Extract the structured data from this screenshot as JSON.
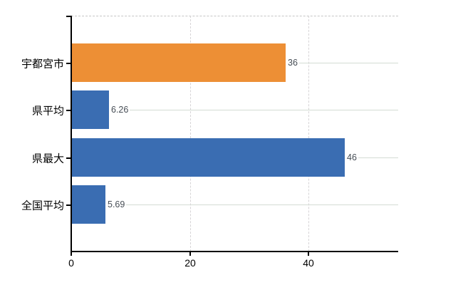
{
  "chart_data": {
    "type": "bar",
    "orientation": "horizontal",
    "title": "",
    "xlabel": "",
    "ylabel": "",
    "categories": [
      "宇都宮市",
      "県平均",
      "県最大",
      "全国平均"
    ],
    "values": [
      36,
      6.26,
      46,
      5.69
    ],
    "value_labels": [
      "36",
      "6.26",
      "46",
      "5.69"
    ],
    "bar_colors": [
      "#ED8F35",
      "#3A6DB2",
      "#3A6DB2",
      "#3A6DB2"
    ],
    "x_ticks": [
      0,
      20,
      40
    ],
    "x_tick_labels": [
      "0",
      "20",
      "40"
    ],
    "xlim": [
      0,
      55.1
    ],
    "grid": {
      "vertical_dashed": true,
      "horizontal_row_lines": true,
      "top_border_dashed": true,
      "legend": "none"
    }
  },
  "colors": {
    "background": "#ffffff",
    "bar_orange": "#ED8F35",
    "bar_blue": "#3A6DB2",
    "axis": "#000000",
    "grid_horizontal": "#d4dcd4",
    "grid_vertical": "#d6d4d6",
    "frame_dash": "#c6c6c6",
    "value_label_text": "#474e56",
    "tick_label_text": "#000000"
  }
}
